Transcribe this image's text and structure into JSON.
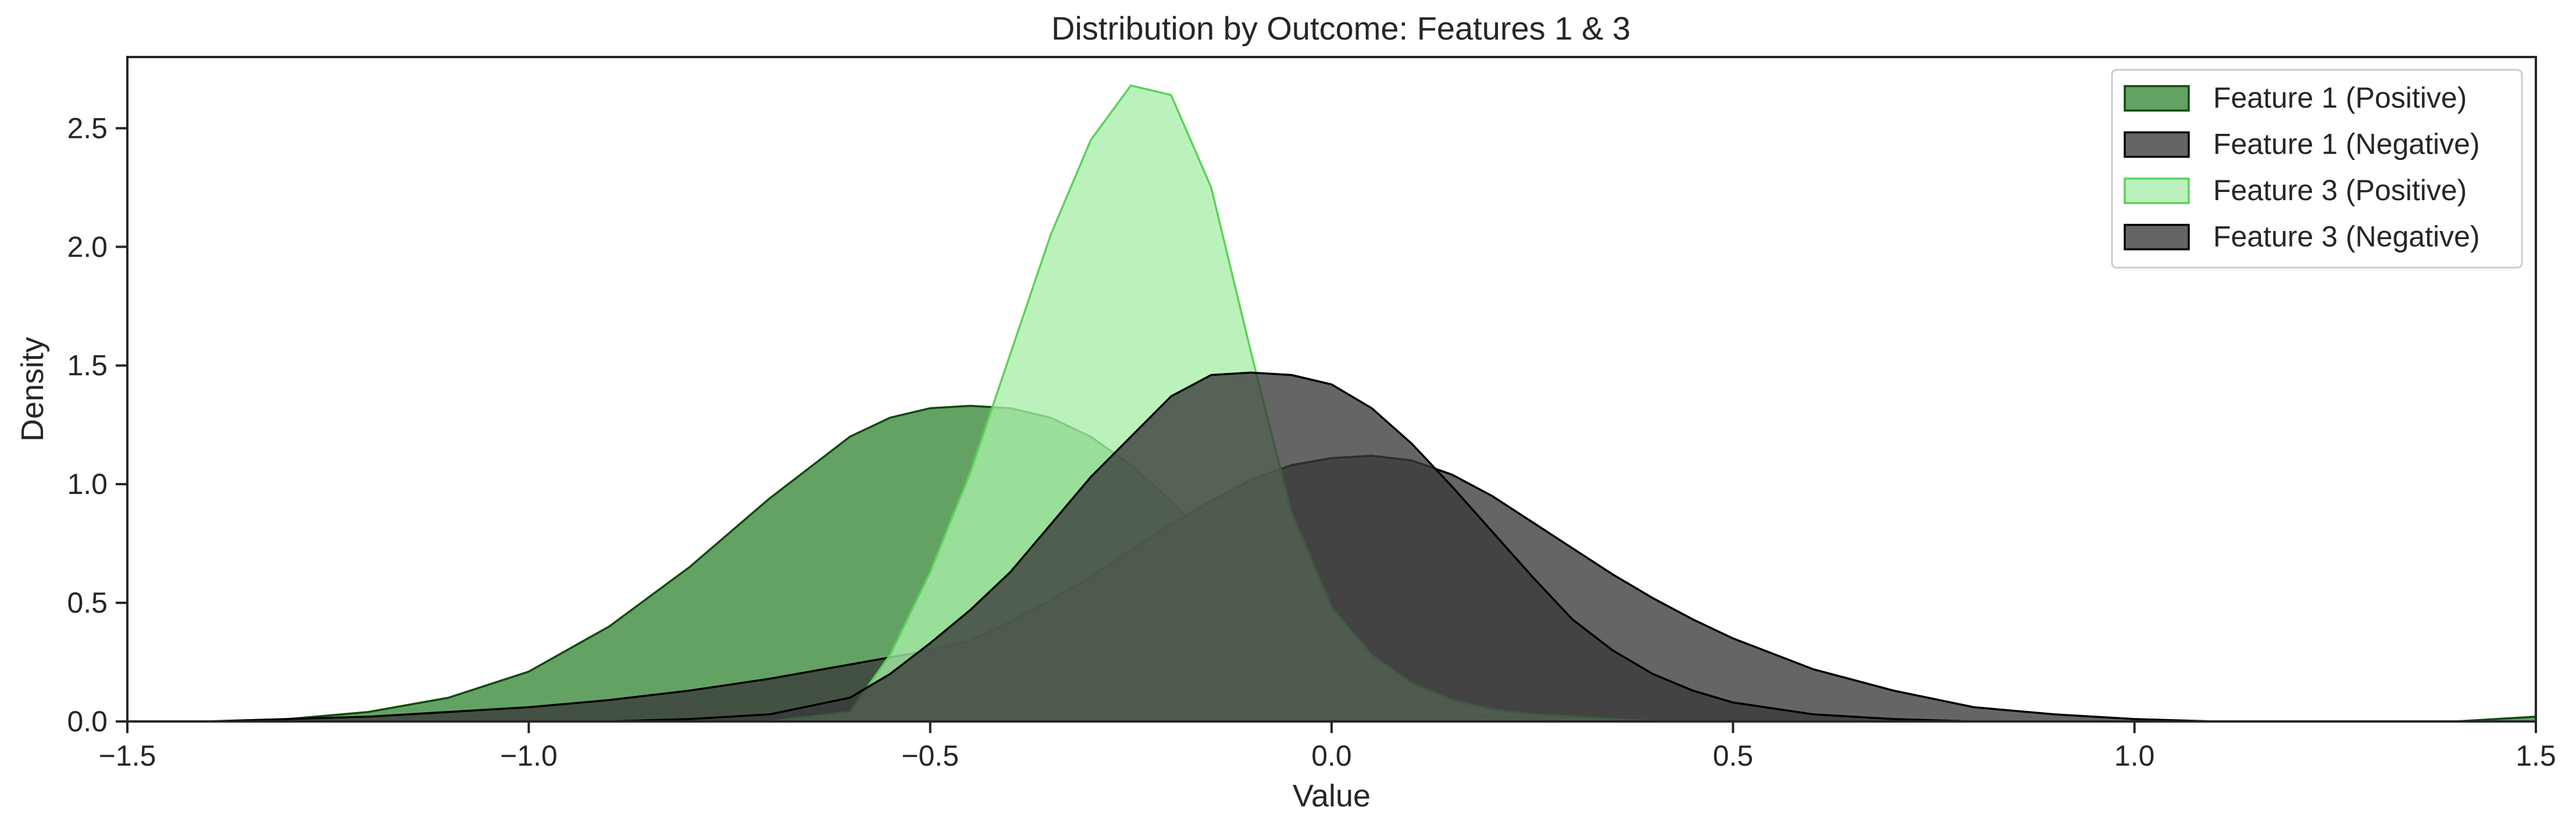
{
  "chart_data": {
    "type": "area",
    "title": "Distribution by Outcome: Features 1 & 3",
    "xlabel": "Value",
    "ylabel": "Density",
    "xlim": [
      -1.5,
      1.5
    ],
    "ylim": [
      0,
      2.8
    ],
    "x_ticks": [
      -1.5,
      -1.0,
      -0.5,
      0.0,
      0.5,
      1.0,
      1.5
    ],
    "x_tick_labels": [
      "−1.5",
      "−1.0",
      "−0.5",
      "0.0",
      "0.5",
      "1.0",
      "1.5"
    ],
    "y_ticks": [
      0.0,
      0.5,
      1.0,
      1.5,
      2.0,
      2.5
    ],
    "y_tick_labels": [
      "0.0",
      "0.5",
      "1.0",
      "1.5",
      "2.0",
      "2.5"
    ],
    "grid": false,
    "legend_position": "top-right",
    "x": [
      -1.5,
      -1.4,
      -1.3,
      -1.2,
      -1.1,
      -1.0,
      -0.9,
      -0.8,
      -0.7,
      -0.6,
      -0.55,
      -0.5,
      -0.45,
      -0.4,
      -0.35,
      -0.3,
      -0.25,
      -0.2,
      -0.15,
      -0.1,
      -0.05,
      0.0,
      0.05,
      0.1,
      0.15,
      0.2,
      0.25,
      0.3,
      0.35,
      0.4,
      0.45,
      0.5,
      0.6,
      0.7,
      0.8,
      0.9,
      1.0,
      1.1,
      1.2,
      1.3,
      1.4,
      1.5
    ],
    "series": [
      {
        "name": "Feature 1 (Positive)",
        "fill": "#3d8b3d",
        "stroke": "#0f4a0f",
        "opacity": 0.8,
        "values": [
          0.0,
          0.0,
          0.01,
          0.04,
          0.1,
          0.21,
          0.4,
          0.65,
          0.94,
          1.2,
          1.28,
          1.32,
          1.33,
          1.32,
          1.28,
          1.2,
          1.08,
          0.93,
          0.76,
          0.58,
          0.41,
          0.27,
          0.16,
          0.09,
          0.04,
          0.02,
          0.01,
          0.0,
          0.0,
          0.0,
          0.0,
          0.0,
          0.0,
          0.0,
          0.0,
          0.0,
          0.0,
          0.0,
          0.0,
          0.0,
          0.0,
          0.02
        ]
      },
      {
        "name": "Feature 1 (Negative)",
        "fill": "#3a3a3a",
        "stroke": "#000000",
        "opacity": 0.78,
        "values": [
          0.0,
          0.0,
          0.01,
          0.02,
          0.04,
          0.06,
          0.09,
          0.13,
          0.18,
          0.24,
          0.27,
          0.3,
          0.34,
          0.42,
          0.51,
          0.61,
          0.72,
          0.83,
          0.93,
          1.02,
          1.08,
          1.11,
          1.12,
          1.1,
          1.04,
          0.95,
          0.84,
          0.73,
          0.62,
          0.52,
          0.43,
          0.35,
          0.22,
          0.13,
          0.06,
          0.03,
          0.01,
          0.0,
          0.0,
          0.0,
          0.0,
          0.0
        ]
      },
      {
        "name": "Feature 3 (Positive)",
        "fill": "#a8eea8",
        "stroke": "#5ad25a",
        "opacity": 0.78,
        "values": [
          0.0,
          0.0,
          0.0,
          0.0,
          0.0,
          0.0,
          0.0,
          0.0,
          0.0,
          0.04,
          0.28,
          0.63,
          1.05,
          1.55,
          2.05,
          2.45,
          2.68,
          2.64,
          2.25,
          1.55,
          0.88,
          0.48,
          0.28,
          0.16,
          0.09,
          0.05,
          0.03,
          0.02,
          0.01,
          0.0,
          0.0,
          0.0,
          0.0,
          0.0,
          0.0,
          0.0,
          0.0,
          0.0,
          0.0,
          0.0,
          0.0,
          0.0
        ]
      },
      {
        "name": "Feature 3 (Negative)",
        "fill": "#3a3a3a",
        "stroke": "#000000",
        "opacity": 0.78,
        "values": [
          0.0,
          0.0,
          0.0,
          0.0,
          0.0,
          0.0,
          0.0,
          0.01,
          0.03,
          0.1,
          0.2,
          0.33,
          0.47,
          0.63,
          0.83,
          1.03,
          1.2,
          1.37,
          1.46,
          1.47,
          1.46,
          1.42,
          1.32,
          1.17,
          0.99,
          0.8,
          0.61,
          0.43,
          0.3,
          0.2,
          0.13,
          0.08,
          0.03,
          0.01,
          0.0,
          0.0,
          0.0,
          0.0,
          0.0,
          0.0,
          0.0,
          0.0
        ]
      }
    ]
  }
}
